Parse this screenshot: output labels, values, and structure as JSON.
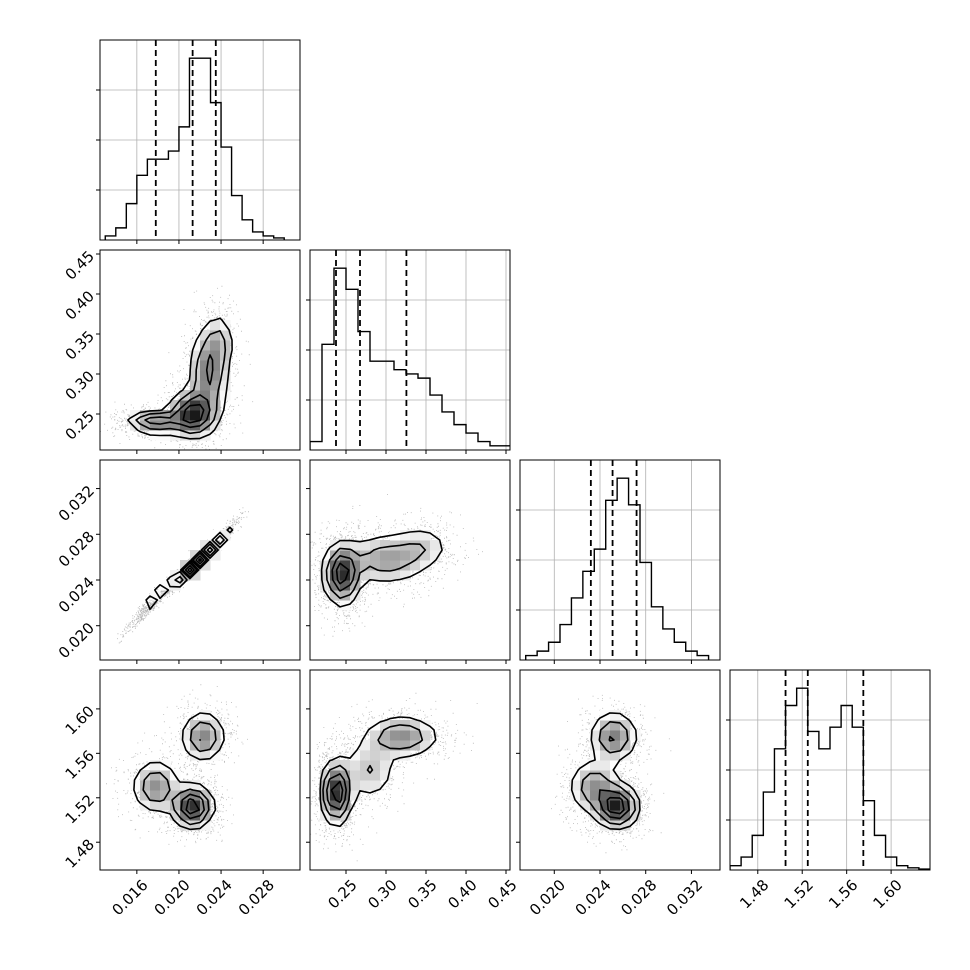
{
  "chart_data": {
    "type": "corner",
    "description_of_panels": "lower-triangle 2D density/contour panels with 1D histograms on diagonal",
    "parameters": [
      {
        "id": "p1",
        "range": [
          0.0125,
          0.0315
        ],
        "ticks": [
          0.016,
          0.02,
          0.024,
          0.028
        ],
        "tick_labels": [
          "0.016",
          "0.020",
          "0.024",
          "0.028"
        ],
        "quantiles": [
          0.0178,
          0.0213,
          0.0235
        ],
        "hist_bins": [
          0.0135,
          0.0145,
          0.0155,
          0.0165,
          0.0175,
          0.0185,
          0.0195,
          0.0205,
          0.0215,
          0.0225,
          0.0235,
          0.0245,
          0.0255,
          0.0265,
          0.0275,
          0.0285,
          0.0295
        ],
        "hist_counts": [
          1,
          3,
          9,
          16,
          20,
          20,
          22,
          28,
          45,
          45,
          34,
          23,
          11,
          5,
          2,
          1,
          0.5
        ]
      },
      {
        "id": "p2",
        "range": [
          0.205,
          0.455
        ],
        "ticks": [
          0.25,
          0.3,
          0.35,
          0.4,
          0.45
        ],
        "tick_labels": [
          "0.25",
          "0.30",
          "0.35",
          "0.40",
          "0.45"
        ],
        "quantiles": [
          0.2375,
          0.2675,
          0.3255
        ],
        "hist_bins": [
          0.2125,
          0.2275,
          0.2425,
          0.2575,
          0.2725,
          0.2875,
          0.3025,
          0.3175,
          0.3325,
          0.3475,
          0.3625,
          0.3775,
          0.3925,
          0.4075,
          0.4225,
          0.4375,
          0.4525
        ],
        "hist_counts": [
          2,
          25,
          43,
          38,
          28,
          21,
          21,
          19,
          18,
          17,
          13,
          9,
          6,
          4,
          2,
          1,
          1
        ]
      },
      {
        "id": "p3",
        "range": [
          0.017,
          0.0345
        ],
        "ticks": [
          0.02,
          0.024,
          0.028,
          0.032
        ],
        "tick_labels": [
          "0.020",
          "0.024",
          "0.028",
          "0.032"
        ],
        "quantiles": [
          0.0232,
          0.0251,
          0.0272
        ],
        "hist_bins": [
          0.018,
          0.019,
          0.02,
          0.021,
          0.022,
          0.023,
          0.024,
          0.025,
          0.026,
          0.027,
          0.028,
          0.029,
          0.03,
          0.031,
          0.032,
          0.033
        ],
        "hist_counts": [
          1,
          2,
          4,
          8,
          14,
          20,
          25,
          36,
          41,
          35,
          22,
          12,
          7,
          4,
          2,
          1
        ]
      },
      {
        "id": "p4",
        "range": [
          1.455,
          1.635
        ],
        "ticks": [
          1.48,
          1.52,
          1.56,
          1.6
        ],
        "tick_labels": [
          "1.48",
          "1.52",
          "1.56",
          "1.60"
        ],
        "quantiles": [
          1.505,
          1.525,
          1.575
        ],
        "hist_bins": [
          1.46,
          1.47,
          1.48,
          1.49,
          1.5,
          1.51,
          1.52,
          1.53,
          1.54,
          1.55,
          1.56,
          1.57,
          1.58,
          1.59,
          1.6,
          1.61,
          1.62,
          1.63
        ],
        "hist_counts": [
          1,
          3,
          8,
          18,
          28,
          38,
          42,
          32,
          28,
          33,
          38,
          33,
          16,
          8,
          3,
          1,
          0.5,
          0.2
        ]
      }
    ],
    "density_blobs": {
      "p1_p2": [
        {
          "x": 0.0178,
          "y": 0.24,
          "sx": 0.0014,
          "sy": 0.007,
          "w": 0.6
        },
        {
          "x": 0.0213,
          "y": 0.25,
          "sx": 0.0012,
          "sy": 0.015,
          "w": 0.75
        },
        {
          "x": 0.0228,
          "y": 0.3,
          "sx": 0.001,
          "sy": 0.03,
          "w": 0.45
        },
        {
          "x": 0.0238,
          "y": 0.34,
          "sx": 0.0008,
          "sy": 0.02,
          "w": 0.25
        }
      ],
      "p1_p3": [
        {
          "x": 0.0178,
          "y": 0.0224,
          "sx": 0.0012,
          "sy": 0.0012,
          "w": 0.4,
          "rho": 0.97
        },
        {
          "x": 0.0213,
          "y": 0.0253,
          "sx": 0.0009,
          "sy": 0.0009,
          "w": 0.85,
          "rho": 0.96
        },
        {
          "x": 0.0233,
          "y": 0.027,
          "sx": 0.001,
          "sy": 0.001,
          "w": 0.45,
          "rho": 0.96
        }
      ],
      "p1_p4": [
        {
          "x": 0.0178,
          "y": 1.53,
          "sx": 0.0012,
          "sy": 0.013,
          "w": 0.5
        },
        {
          "x": 0.0213,
          "y": 1.512,
          "sx": 0.001,
          "sy": 0.01,
          "w": 0.95
        },
        {
          "x": 0.0223,
          "y": 1.575,
          "sx": 0.0011,
          "sy": 0.012,
          "w": 0.55
        }
      ],
      "p2_p3": [
        {
          "x": 0.245,
          "y": 0.0245,
          "sx": 0.012,
          "sy": 0.0014,
          "w": 0.95
        },
        {
          "x": 0.3,
          "y": 0.0258,
          "sx": 0.03,
          "sy": 0.0012,
          "w": 0.45
        },
        {
          "x": 0.345,
          "y": 0.027,
          "sx": 0.02,
          "sy": 0.001,
          "w": 0.25
        }
      ],
      "p2_p4": [
        {
          "x": 0.238,
          "y": 1.525,
          "sx": 0.01,
          "sy": 0.015,
          "w": 0.95
        },
        {
          "x": 0.28,
          "y": 1.545,
          "sx": 0.018,
          "sy": 0.015,
          "w": 0.3
        },
        {
          "x": 0.32,
          "y": 1.575,
          "sx": 0.025,
          "sy": 0.01,
          "w": 0.5
        }
      ],
      "p3_p4": [
        {
          "x": 0.0235,
          "y": 1.53,
          "sx": 0.0012,
          "sy": 0.013,
          "w": 0.45
        },
        {
          "x": 0.0255,
          "y": 1.512,
          "sx": 0.001,
          "sy": 0.01,
          "w": 0.9
        },
        {
          "x": 0.0252,
          "y": 1.575,
          "sx": 0.0011,
          "sy": 0.012,
          "w": 0.55
        }
      ]
    },
    "grid": true,
    "quantile_line_style": "dashed"
  }
}
